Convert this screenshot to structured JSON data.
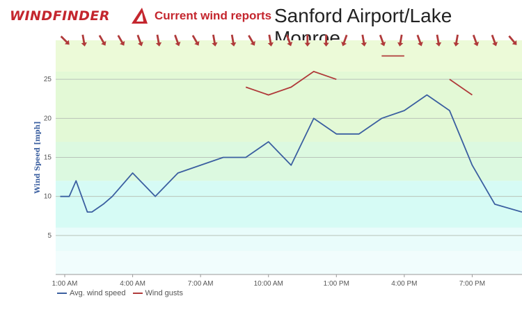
{
  "header": {
    "brand": "WINDFINDER",
    "subtitle": "Current wind reports",
    "station": "Sanford Airport/Lake Monroe"
  },
  "colors": {
    "brand_red": "#c4262e",
    "avg_line": "#3b5fa0",
    "gust_line": "#b03a3a",
    "arrow": "#b03a3a"
  },
  "legend": {
    "avg_label": "Avg. wind speed",
    "gust_label": "Wind gusts"
  },
  "chart_data": {
    "type": "line",
    "title": "",
    "ylabel": "Wind Speed [mph]",
    "xlabel": "",
    "ylim": [
      0,
      30
    ],
    "xlim_hours": [
      0.6,
      21.2
    ],
    "yticks": [
      5,
      10,
      15,
      20,
      25
    ],
    "xticks": [
      {
        "hour": 1,
        "label": "1:00 AM"
      },
      {
        "hour": 4,
        "label": "4:00 AM"
      },
      {
        "hour": 7,
        "label": "7:00 AM"
      },
      {
        "hour": 10,
        "label": "10:00 AM"
      },
      {
        "hour": 13,
        "label": "1:00 PM"
      },
      {
        "hour": 16,
        "label": "4:00 PM"
      },
      {
        "hour": 19,
        "label": "7:00 PM"
      }
    ],
    "grid": true,
    "legend_position": "bottom-left",
    "series": [
      {
        "name": "Avg. wind speed",
        "points": [
          [
            0.8,
            10
          ],
          [
            1.2,
            10
          ],
          [
            1.5,
            12
          ],
          [
            2.0,
            8
          ],
          [
            2.2,
            8
          ],
          [
            2.7,
            9
          ],
          [
            3.1,
            10
          ],
          [
            4.0,
            13
          ],
          [
            5.0,
            10
          ],
          [
            6.0,
            13
          ],
          [
            7.0,
            14
          ],
          [
            8.0,
            15
          ],
          [
            9.0,
            15
          ],
          [
            10.0,
            17
          ],
          [
            11.0,
            14
          ],
          [
            12.0,
            20
          ],
          [
            13.0,
            18
          ],
          [
            14.0,
            18
          ],
          [
            15.0,
            20
          ],
          [
            16.0,
            21
          ],
          [
            17.0,
            23
          ],
          [
            18.0,
            21
          ],
          [
            19.0,
            14
          ],
          [
            20.0,
            9
          ],
          [
            21.2,
            8
          ]
        ]
      },
      {
        "name": "Wind gusts",
        "segments": [
          [
            [
              9.0,
              24
            ],
            [
              10.0,
              23
            ],
            [
              11.0,
              24
            ],
            [
              12.0,
              26
            ],
            [
              13.0,
              25
            ]
          ],
          [
            [
              15.0,
              28
            ],
            [
              16.0,
              28
            ]
          ],
          [
            [
              18.0,
              25
            ],
            [
              19.0,
              23
            ]
          ]
        ]
      }
    ],
    "wind_direction_arrows_deg": [
      45,
      80,
      60,
      60,
      70,
      80,
      70,
      60,
      80,
      80,
      60,
      80,
      70,
      90,
      90,
      110,
      80,
      70,
      100,
      70,
      80,
      100,
      70,
      70,
      50
    ],
    "background_bands": [
      {
        "from": 0,
        "to": 3,
        "color": "#f1fdfd"
      },
      {
        "from": 3,
        "to": 6,
        "color": "#e9fcfb"
      },
      {
        "from": 6,
        "to": 12,
        "color": "#d6fbf5"
      },
      {
        "from": 12,
        "to": 17,
        "color": "#dcf9e0"
      },
      {
        "from": 17,
        "to": 26,
        "color": "#e3f9d6"
      },
      {
        "from": 26,
        "to": 30,
        "color": "#ecfad8"
      }
    ]
  }
}
